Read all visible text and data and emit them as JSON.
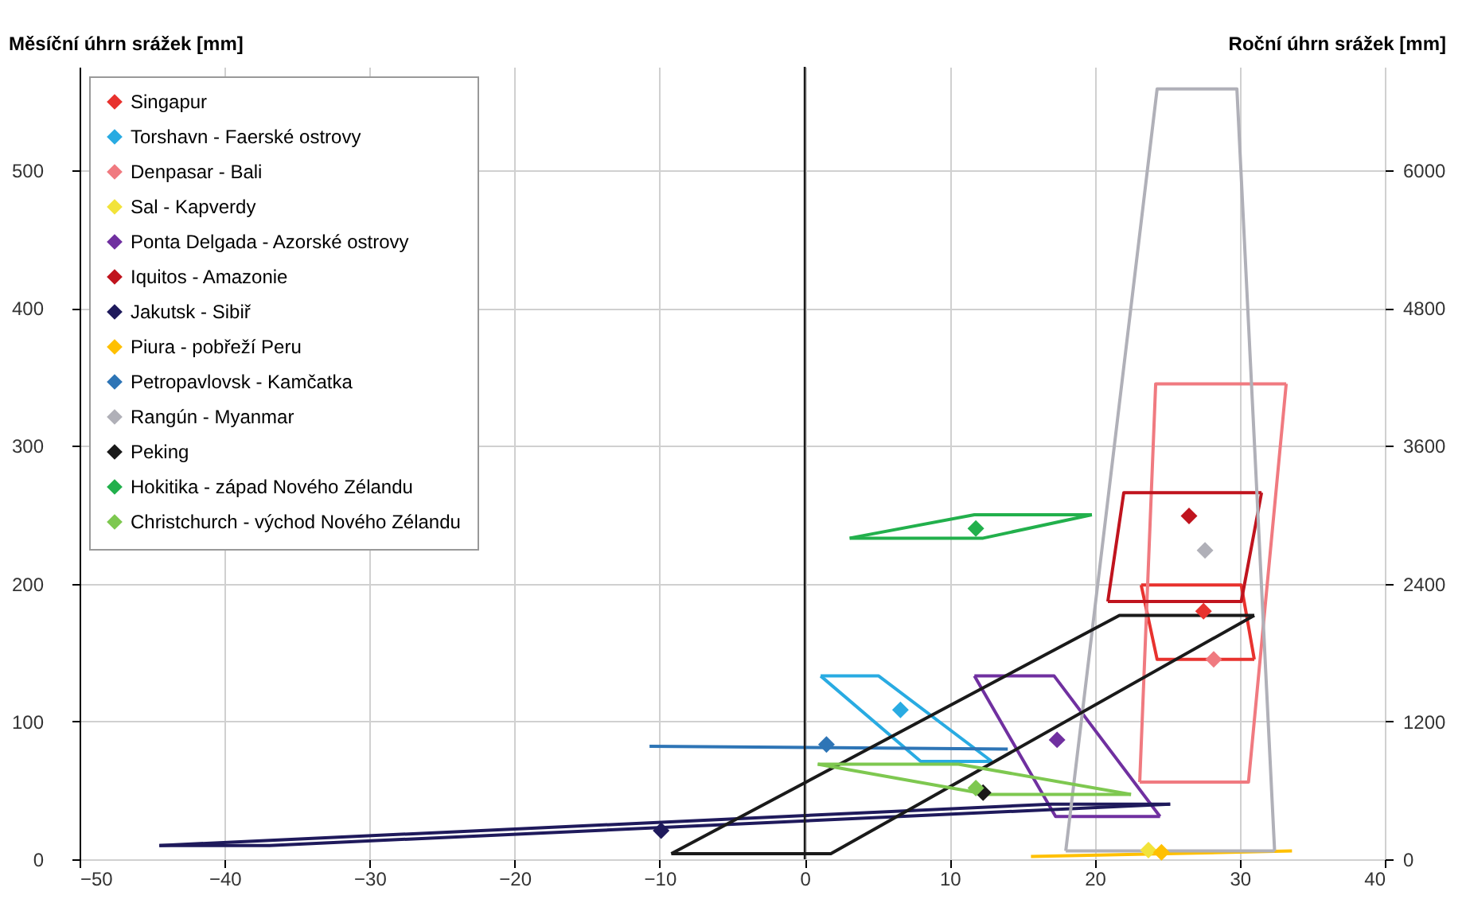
{
  "chart_data": {
    "type": "line",
    "ylabel": "Měsíční úhrn srážek [mm]",
    "y2label": "Roční úhrn srážek [mm]",
    "xlim": [
      -50,
      40
    ],
    "xticks": [
      -50,
      -40,
      -30,
      -20,
      -10,
      0,
      10,
      20,
      30,
      40
    ],
    "ylim": [
      0,
      575
    ],
    "yticks": [
      0,
      100,
      200,
      300,
      400,
      500
    ],
    "y2lim": [
      0,
      6900
    ],
    "y2ticks": [
      0,
      1200,
      2400,
      3600,
      4800,
      6000
    ],
    "grid": true,
    "legend": "top left",
    "line_style": "solid",
    "ref_lines": [
      {
        "axis": "x",
        "value": 0,
        "color": "#1a1a1a"
      }
    ],
    "series": [
      {
        "name": "Singapur",
        "color": "#e8322e",
        "marker": "none",
        "x": [
          23.2,
          30.1,
          31.0
        ],
        "values": [
          199,
          199,
          145
        ]
      },
      {
        "color": "#e8322e",
        "marker": "none",
        "x": [
          23.2,
          24.3,
          31.0
        ],
        "values": [
          199,
          145,
          145
        ]
      },
      {
        "type": "scatter",
        "axis": "y2",
        "marker": "diamond",
        "color": "#e8322e",
        "x": [
          27.5
        ],
        "values": [
          2160
        ]
      },
      {
        "name": "Torshavn - Faerské ostrovy",
        "color": "#29abe2",
        "marker": "none",
        "x": [
          1.1,
          5.1,
          12.9
        ],
        "values": [
          133,
          133,
          71
        ]
      },
      {
        "color": "#29abe2",
        "marker": "none",
        "x": [
          1.1,
          8.0,
          12.9
        ],
        "values": [
          133,
          71,
          71
        ]
      },
      {
        "type": "scatter",
        "axis": "y2",
        "marker": "diamond",
        "color": "#29abe2",
        "x": [
          6.6
        ],
        "values": [
          1300
        ]
      },
      {
        "name": "Denpasar - Bali",
        "color": "#f07a80",
        "marker": "none",
        "x": [
          23.1,
          24.2,
          33.2
        ],
        "values": [
          56,
          345,
          345
        ]
      },
      {
        "color": "#f07a80",
        "marker": "none",
        "x": [
          23.1,
          30.6,
          33.2
        ],
        "values": [
          56,
          56,
          345
        ]
      },
      {
        "type": "scatter",
        "axis": "y2",
        "marker": "diamond",
        "color": "#f07a80",
        "x": [
          28.2
        ],
        "values": [
          1740
        ]
      },
      {
        "name": "Sal - Kapverdy",
        "type": "scatter",
        "axis": "y2",
        "marker": "diamond",
        "color": "#f2e33a",
        "x": [
          23.7
        ],
        "values": [
          80
        ]
      },
      {
        "name": "Ponta Delgada - Azorské ostrovy",
        "color": "#7030a0",
        "marker": "none",
        "x": [
          11.7,
          17.2,
          24.5
        ],
        "values": [
          133,
          133,
          31
        ]
      },
      {
        "color": "#7030a0",
        "marker": "none",
        "x": [
          11.7,
          17.3,
          24.5
        ],
        "values": [
          133,
          31,
          31
        ]
      },
      {
        "type": "scatter",
        "axis": "y2",
        "marker": "diamond",
        "color": "#7030a0",
        "x": [
          17.4
        ],
        "values": [
          1040
        ]
      },
      {
        "name": "Iquitos - Amazonie",
        "color": "#c0141e",
        "marker": "none",
        "x": [
          20.9,
          22.0,
          31.5
        ],
        "values": [
          187,
          266,
          266
        ]
      },
      {
        "color": "#c0141e",
        "marker": "none",
        "x": [
          20.9,
          30.1,
          31.5
        ],
        "values": [
          187,
          187,
          266
        ]
      },
      {
        "type": "scatter",
        "axis": "y2",
        "marker": "diamond",
        "color": "#c0141e",
        "x": [
          26.5
        ],
        "values": [
          2990
        ]
      },
      {
        "name": "Jakutsk - Sibiř",
        "color": "#1f1a5c",
        "marker": "none",
        "x": [
          -44.5,
          17.0,
          25.2
        ],
        "values": [
          10,
          40,
          40
        ]
      },
      {
        "color": "#1f1a5c",
        "marker": "none",
        "x": [
          -44.5,
          -36.9,
          25.2
        ],
        "values": [
          10,
          10,
          40
        ]
      },
      {
        "type": "scatter",
        "axis": "y2",
        "marker": "diamond",
        "color": "#1f1a5c",
        "x": [
          -9.9
        ],
        "values": [
          250
        ]
      },
      {
        "name": "Piura - pobřeží Peru",
        "color": "#ffc000",
        "marker": "none",
        "x": [
          15.6,
          33.6
        ],
        "values": [
          2,
          6
        ]
      },
      {
        "type": "scatter",
        "axis": "y2",
        "marker": "diamond",
        "color": "#ffc000",
        "x": [
          24.6
        ],
        "values": [
          60
        ]
      },
      {
        "name": "Petropavlovsk - Kamčatka",
        "color": "#2e75b6",
        "marker": "none",
        "x": [
          -10.7,
          14.0
        ],
        "values": [
          82,
          80
        ]
      },
      {
        "type": "scatter",
        "axis": "y2",
        "marker": "diamond",
        "color": "#2e75b6",
        "x": [
          1.5
        ],
        "values": [
          1000
        ]
      },
      {
        "name": "Rangún - Myanmar",
        "color": "#b0b0b8",
        "marker": "none",
        "x": [
          18.0,
          24.3,
          29.8,
          32.4
        ],
        "values": [
          6,
          559,
          559,
          6
        ]
      },
      {
        "color": "#b0b0b8",
        "marker": "none",
        "x": [
          18.0,
          32.4
        ],
        "values": [
          6,
          6
        ]
      },
      {
        "type": "scatter",
        "axis": "y2",
        "marker": "diamond",
        "color": "#b0b0b8",
        "x": [
          27.6
        ],
        "values": [
          2690
        ]
      },
      {
        "name": "Peking",
        "color": "#1a1a1a",
        "marker": "none",
        "x": [
          -9.2,
          21.7,
          31.0
        ],
        "values": [
          4,
          177,
          177
        ]
      },
      {
        "color": "#1a1a1a",
        "marker": "none",
        "x": [
          -9.2,
          1.8,
          31.0
        ],
        "values": [
          4,
          4,
          177
        ]
      },
      {
        "type": "scatter",
        "axis": "y2",
        "marker": "diamond",
        "color": "#1a1a1a",
        "x": [
          12.3
        ],
        "values": [
          580
        ]
      },
      {
        "name": "Hokitika - západ Nového Zélandu",
        "color": "#22b04c",
        "marker": "none",
        "x": [
          3.1,
          11.7,
          19.8
        ],
        "values": [
          233,
          250,
          250
        ]
      },
      {
        "color": "#22b04c",
        "marker": "none",
        "x": [
          3.1,
          12.3,
          19.8
        ],
        "values": [
          233,
          233,
          250
        ]
      },
      {
        "type": "scatter",
        "axis": "y2",
        "marker": "diamond",
        "color": "#22b04c",
        "x": [
          11.8
        ],
        "values": [
          2880
        ]
      },
      {
        "name": "Christchurch - východ Nového Zélandu",
        "color": "#7ec850",
        "marker": "none",
        "x": [
          0.9,
          10.6,
          22.5
        ],
        "values": [
          69,
          69,
          47
        ]
      },
      {
        "color": "#7ec850",
        "marker": "none",
        "x": [
          0.9,
          12.6,
          22.5
        ],
        "values": [
          69,
          47,
          47
        ]
      },
      {
        "type": "scatter",
        "axis": "y2",
        "marker": "diamond",
        "color": "#7ec850",
        "x": [
          11.8
        ],
        "values": [
          620
        ]
      }
    ]
  }
}
